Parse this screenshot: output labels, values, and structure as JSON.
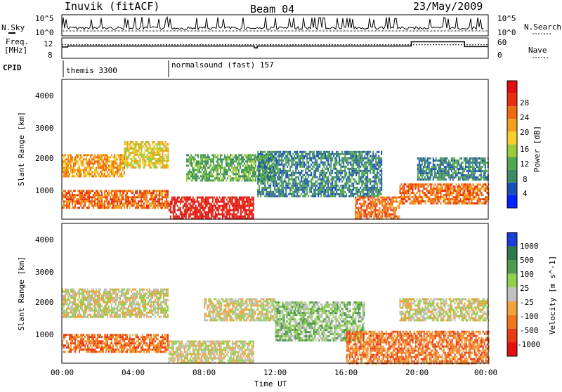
{
  "header": {
    "station": "Inuvik (fitACF)",
    "beam": "Beam 04",
    "date": "23/May/2009"
  },
  "strip_labels": {
    "nsky": "N.Sky",
    "nsearch": "N.Search",
    "freq_line1": "Freq.",
    "freq_line2": "[MHz]",
    "nave": "Nave",
    "cpid": "CPID"
  },
  "cpid_programs": [
    {
      "name": "themis 3300",
      "start": "00:00",
      "end": "06:00"
    },
    {
      "name": "normalsound (fast) 157",
      "start": "06:00",
      "end": "24:00"
    }
  ],
  "colors": {
    "power": [
      "#0022ff",
      "#1b4fb8",
      "#3f8a64",
      "#4fa84f",
      "#9ccc3c",
      "#f6cf2a",
      "#f4a01a",
      "#f06a10",
      "#e83010",
      "#e01010"
    ],
    "velocity": [
      "#1a3fd6",
      "#2c7a4a",
      "#4e9a4e",
      "#8fd04e",
      "#c0c0c0",
      "#f2a23a",
      "#f07818",
      "#e83a14",
      "#e41010"
    ]
  },
  "chart_data": [
    {
      "type": "line",
      "title": "N.Sky / N.Search",
      "y_left_ticks": [
        "10^5",
        "10^0"
      ],
      "y_right_ticks": [
        "10^5",
        "10^0"
      ],
      "series": [
        {
          "name": "N.Sky"
        },
        {
          "name": "N.Search"
        }
      ]
    },
    {
      "type": "line",
      "title": "Freq. / Nave",
      "y_left_ticks": [
        "12",
        "8"
      ],
      "y_right_ticks": [
        "60",
        "0"
      ],
      "series": [
        {
          "name": "Freq.",
          "x": [
            "00:00",
            "00:20",
            "06:00",
            "10:50",
            "11:00",
            "18:40",
            "19:40",
            "22:40",
            "24:00"
          ],
          "values": [
            11.5,
            11.8,
            11.8,
            11.2,
            11.8,
            11.8,
            13.2,
            11.6,
            11.6
          ]
        },
        {
          "name": "Nave",
          "x": [
            "00:00",
            "24:00"
          ],
          "values": [
            42,
            42
          ]
        }
      ]
    },
    {
      "type": "heatmap",
      "xlabel": "",
      "ylabel": "Slant Range [km]",
      "x_ticks": [],
      "y_ticks": [
        "1000",
        "2000",
        "3000",
        "4000"
      ],
      "xlim": [
        "00:00",
        "24:00"
      ],
      "ylim": [
        200,
        4500
      ],
      "colorbar": {
        "label": "Power [dB]",
        "ticks": [
          "4",
          "8",
          "12",
          "16",
          "20",
          "24",
          "28"
        ],
        "range": [
          0,
          30
        ]
      },
      "bands": [
        {
          "t0": 0,
          "t1": 6,
          "r0": 550,
          "r1": 1100,
          "level": 7
        },
        {
          "t0": 0,
          "t1": 3.5,
          "r0": 1500,
          "r1": 2200,
          "level": 6
        },
        {
          "t0": 3.5,
          "t1": 6,
          "r0": 1800,
          "r1": 2600,
          "level": 5
        },
        {
          "t0": 6,
          "t1": 10.8,
          "r0": 200,
          "r1": 900,
          "level": 9
        },
        {
          "t0": 7,
          "t1": 12,
          "r0": 1400,
          "r1": 2200,
          "level": 3
        },
        {
          "t0": 11,
          "t1": 18,
          "r0": 900,
          "r1": 2300,
          "level": 2
        },
        {
          "t0": 16.5,
          "t1": 19,
          "r0": 200,
          "r1": 900,
          "level": 7
        },
        {
          "t0": 19,
          "t1": 24,
          "r0": 700,
          "r1": 1300,
          "level": 7
        },
        {
          "t0": 20,
          "t1": 24,
          "r0": 1400,
          "r1": 2100,
          "level": 2
        }
      ]
    },
    {
      "type": "heatmap",
      "xlabel": "Time UT",
      "ylabel": "Slant Range [km]",
      "x_ticks": [
        "00:00",
        "04:00",
        "08:00",
        "12:00",
        "16:00",
        "20:00",
        "00:00"
      ],
      "y_ticks": [
        "1000",
        "2000",
        "3000",
        "4000"
      ],
      "xlim": [
        "00:00",
        "24:00"
      ],
      "ylim": [
        200,
        4500
      ],
      "colorbar": {
        "label": "Velocity [m s^-1]",
        "ticks": [
          "1000",
          "500",
          "100",
          "25",
          "-25",
          "-100",
          "-500",
          "-1000"
        ],
        "range": [
          -1000,
          1000
        ]
      },
      "bands": [
        {
          "t0": 0,
          "t1": 6,
          "r0": 550,
          "r1": 1100,
          "level": 6
        },
        {
          "t0": 0,
          "t1": 6,
          "r0": 1600,
          "r1": 2500,
          "level": 4
        },
        {
          "t0": 6,
          "t1": 10.8,
          "r0": 200,
          "r1": 900,
          "level": 4
        },
        {
          "t0": 8,
          "t1": 12,
          "r0": 1500,
          "r1": 2200,
          "level": 4
        },
        {
          "t0": 12,
          "t1": 17,
          "r0": 900,
          "r1": 2100,
          "level": 3
        },
        {
          "t0": 16,
          "t1": 24,
          "r0": 200,
          "r1": 1200,
          "level": 6
        },
        {
          "t0": 19,
          "t1": 24,
          "r0": 1500,
          "r1": 2200,
          "level": 4
        }
      ]
    }
  ]
}
